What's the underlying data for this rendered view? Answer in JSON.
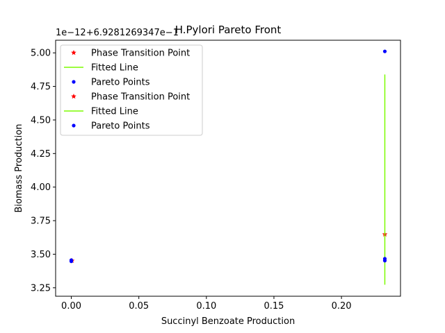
{
  "chart_data": {
    "type": "scatter",
    "title": "H.Pylori Pareto Front",
    "xlabel": "Succinyl Benzoate Production",
    "ylabel": "Biomass Production",
    "y_offset_label": "1e−12+6.9281269347e−1",
    "xlim": [
      -0.0116,
      0.2437
    ],
    "ylim": [
      3.187,
      5.094
    ],
    "x_ticks": [
      0.0,
      0.05,
      0.1,
      0.15,
      0.2
    ],
    "x_tick_labels": [
      "0.00",
      "0.05",
      "0.10",
      "0.15",
      "0.20"
    ],
    "y_ticks": [
      3.25,
      3.5,
      3.75,
      4.0,
      4.25,
      4.5,
      4.75,
      5.0
    ],
    "y_tick_labels": [
      "3.25",
      "3.50",
      "3.75",
      "4.00",
      "4.25",
      "4.50",
      "4.75",
      "5.00"
    ],
    "grid": false,
    "legend_position": "top-left",
    "series": [
      {
        "name": "Phase Transition Point",
        "kind": "marker-star",
        "color": "#ff0000",
        "x": [
          0.2321,
          0.0005
        ],
        "y": [
          3.648,
          3.452
        ]
      },
      {
        "name": "Fitted Line",
        "kind": "line",
        "color": "#7cfc00",
        "x": [
          0.2321,
          0.2321
        ],
        "y": [
          3.273,
          4.839
        ]
      },
      {
        "name": "Pareto Points",
        "kind": "marker-dot",
        "color": "#0000ff",
        "x": [
          0.2321,
          0.2321,
          0.2321,
          0.0,
          0.0
        ],
        "y": [
          5.011,
          3.466,
          3.452,
          3.456,
          3.447
        ]
      },
      {
        "name": "Phase Transition Point",
        "kind": "marker-star",
        "color": "#ff0000",
        "x": [],
        "y": []
      },
      {
        "name": "Fitted Line",
        "kind": "line",
        "color": "#7cfc00",
        "x": [],
        "y": []
      },
      {
        "name": "Pareto Points",
        "kind": "marker-dot",
        "color": "#0000ff",
        "x": [],
        "y": []
      }
    ]
  }
}
